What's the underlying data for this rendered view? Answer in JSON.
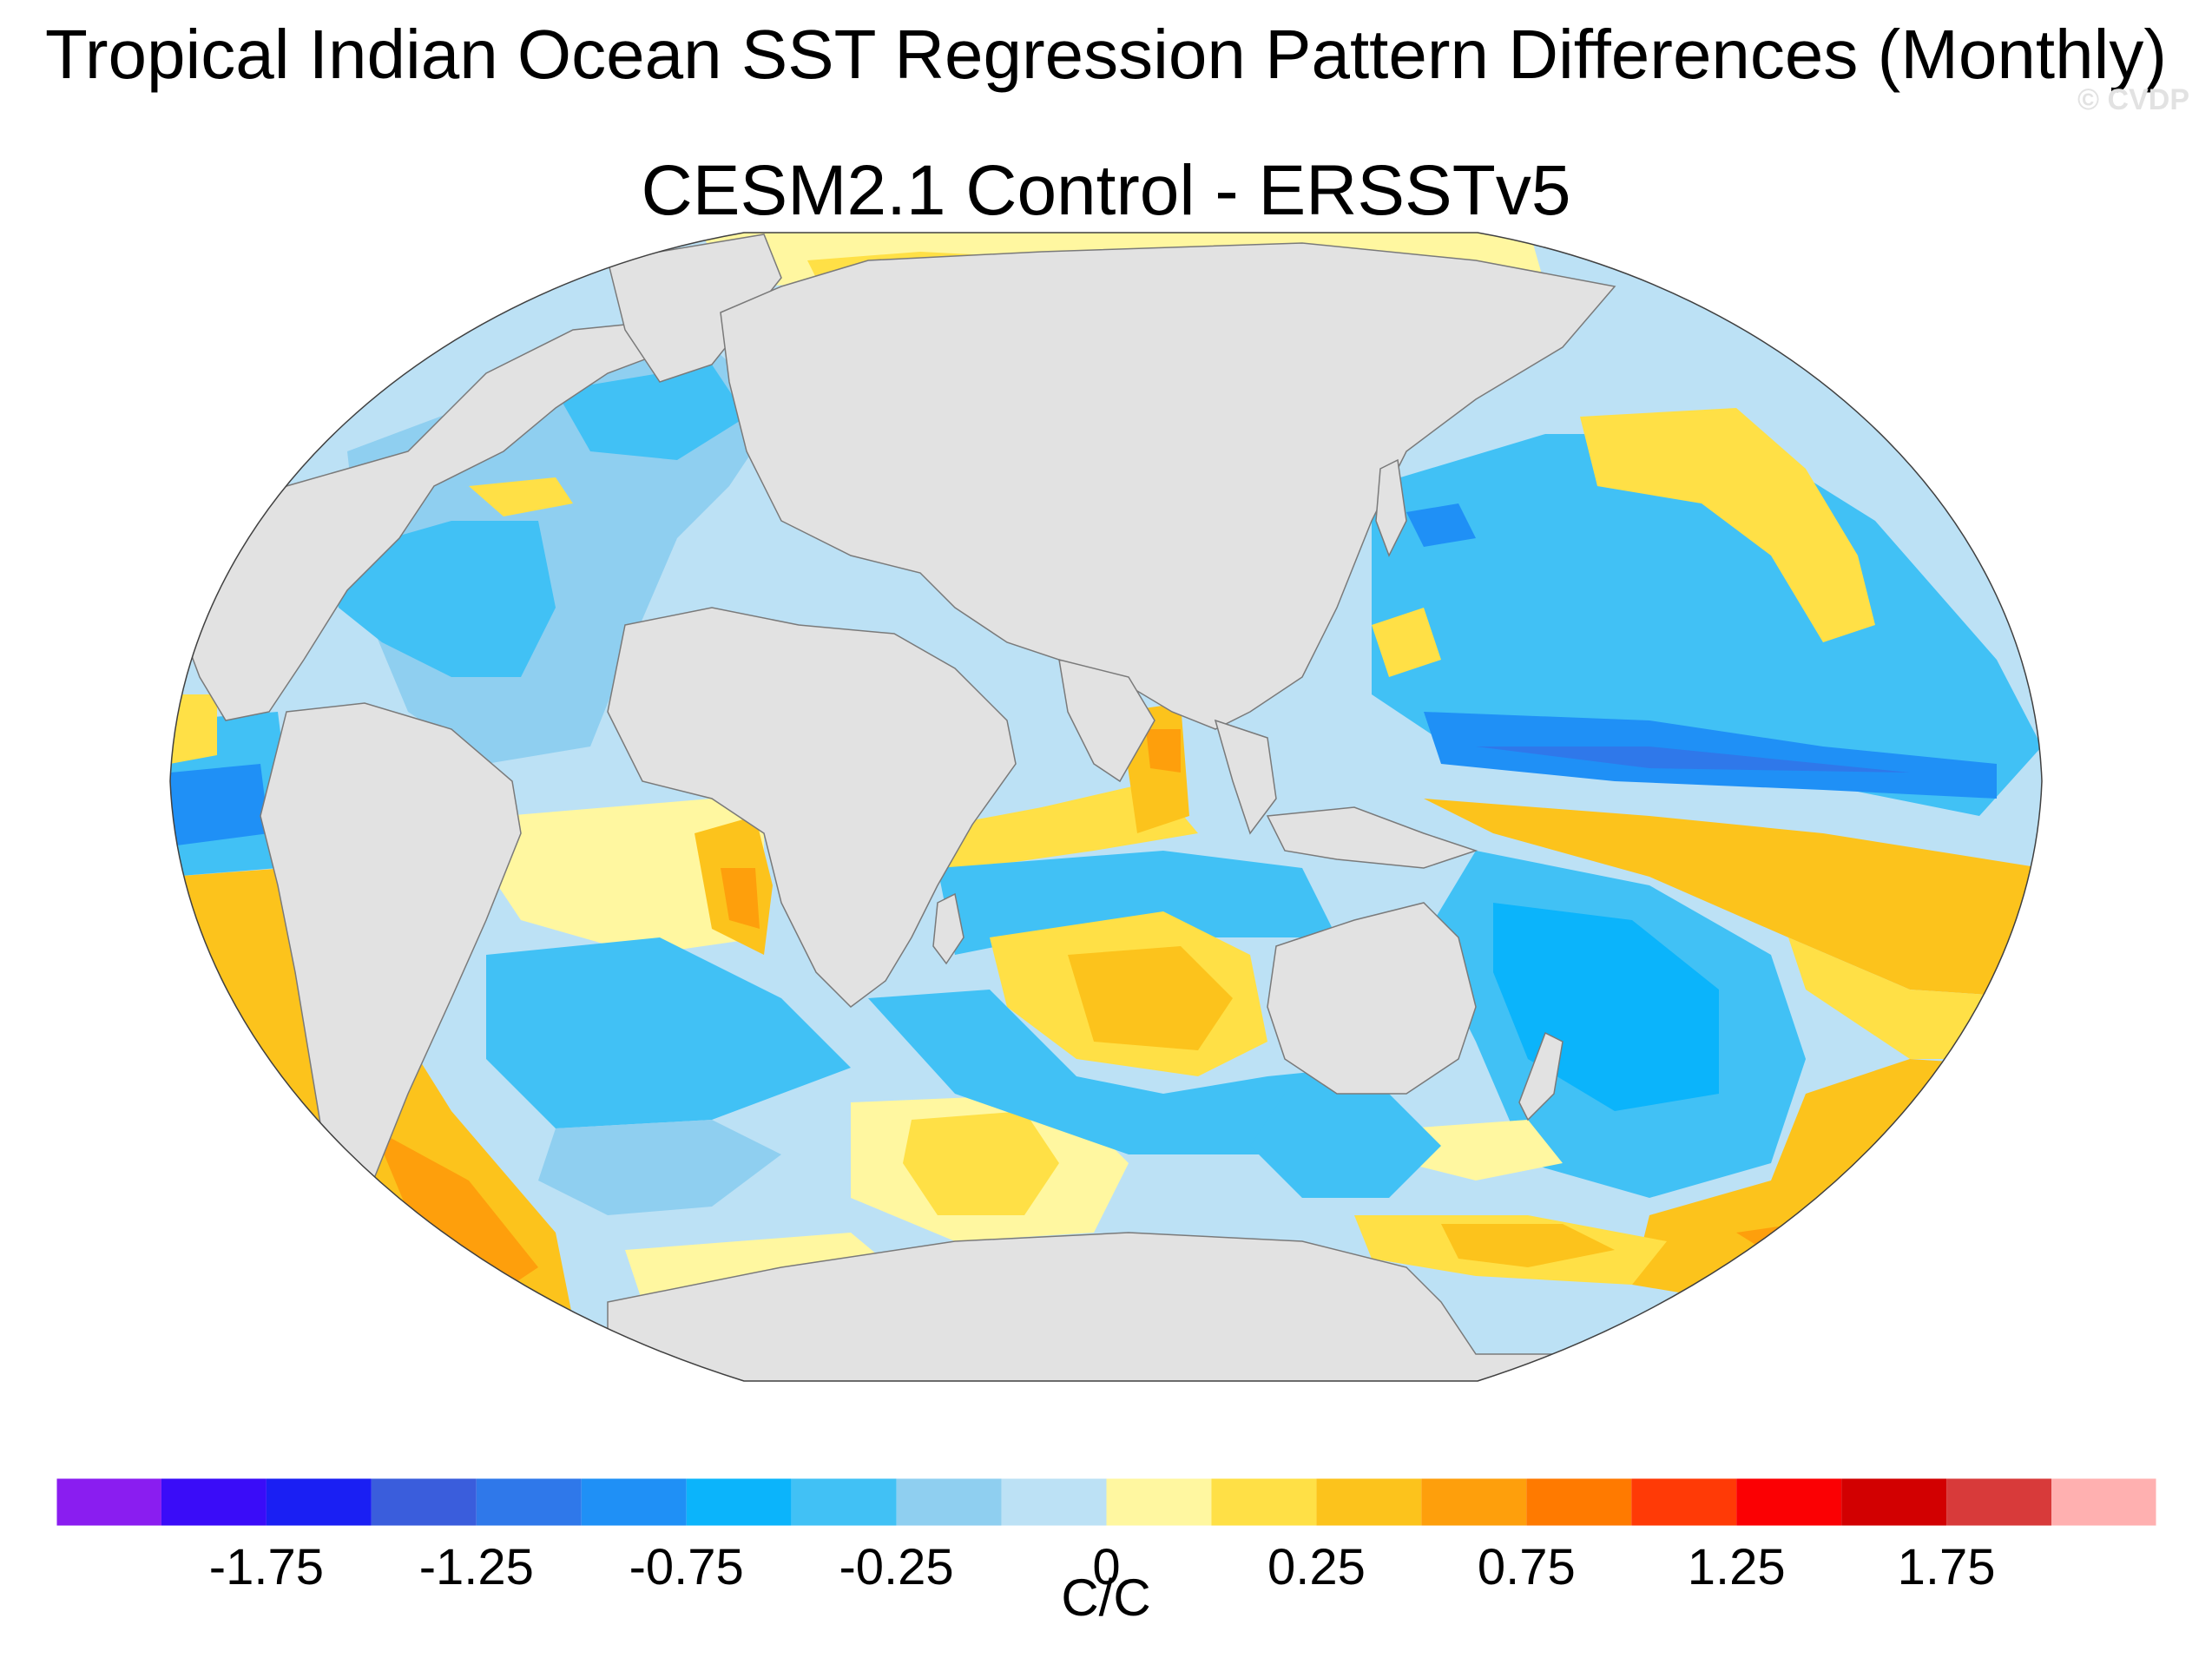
{
  "title": "Tropical Indian Ocean SST Regression Pattern Differences (Monthly)",
  "credit": "© CVDP",
  "subtitle": "CESM2.1 Control - ERSSTv5",
  "colorbar": {
    "unit": "C/C",
    "colors": [
      "#8a1df0",
      "#3a0cf8",
      "#1a1ff3",
      "#3a5ddc",
      "#2f78ea",
      "#1f90f6",
      "#0bb4fb",
      "#41c1f5",
      "#8fcff0",
      "#bce1f5",
      "#fff7a0",
      "#ffe046",
      "#fcc31c",
      "#fe9f0c",
      "#ff7a00",
      "#ff3a06",
      "#fb0003",
      "#d20001",
      "#d83a3a",
      "#ffb0b0"
    ],
    "levels": [
      -2,
      -1.75,
      -1.5,
      -1.25,
      -1,
      -0.75,
      -0.5,
      -0.25,
      -0.125,
      0,
      0.125,
      0.25,
      0.5,
      0.75,
      1,
      1.25,
      1.5,
      1.75,
      2
    ],
    "tick_labels": [
      {
        "label": "-1.75",
        "boundary": 1
      },
      {
        "label": "-1.25",
        "boundary": 3
      },
      {
        "label": "-0.75",
        "boundary": 5
      },
      {
        "label": "-0.25",
        "boundary": 7
      },
      {
        "label": "0",
        "boundary": 9
      },
      {
        "label": "0.25",
        "boundary": 11
      },
      {
        "label": "0.75",
        "boundary": 13
      },
      {
        "label": "1.25",
        "boundary": 15
      },
      {
        "label": "1.75",
        "boundary": 17
      }
    ]
  },
  "map_colors": {
    "land": "#e2e2e2",
    "coast": "#7a7a7a",
    "ocean_base": "#bce1f5"
  }
}
